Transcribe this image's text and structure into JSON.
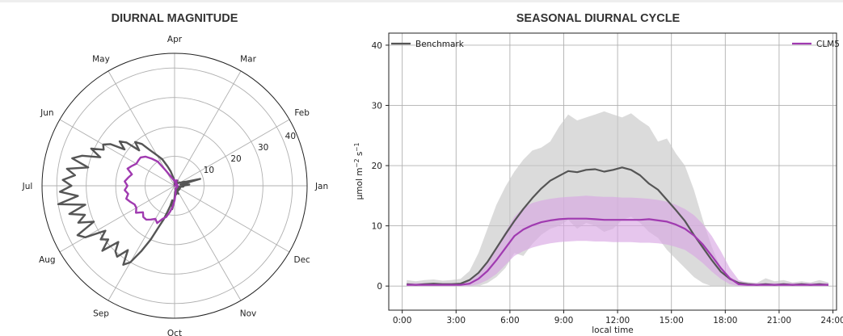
{
  "colors": {
    "benchmark": "#555555",
    "clm5": "#a03ab0",
    "benchmark_band": "#c8c8c8",
    "clm5_band": "#d9a8e3",
    "grid": "#b0b0b0"
  },
  "chart_data": [
    {
      "type": "line",
      "subtype": "polar",
      "title": "DIURNAL MAGNITUDE",
      "angular_labels": [
        "Jan",
        "Feb",
        "Mar",
        "Apr",
        "May",
        "Jun",
        "Jul",
        "Aug",
        "Sep",
        "Oct",
        "Nov",
        "Dec"
      ],
      "radial_ticks": [
        10,
        20,
        30,
        40
      ],
      "rlim": [
        0,
        45
      ],
      "direction": "counterclockwise",
      "zero_location": "east",
      "series": [
        {
          "name": "Benchmark",
          "color_key": "benchmark",
          "points": [
            [
              0,
              3
            ],
            [
              5,
              5
            ],
            [
              10,
              2
            ],
            [
              15,
              9
            ],
            [
              20,
              4
            ],
            [
              25,
              3
            ],
            [
              30,
              2
            ],
            [
              35,
              2
            ],
            [
              40,
              1
            ],
            [
              45,
              0
            ],
            [
              50,
              0
            ],
            [
              55,
              1
            ],
            [
              60,
              2
            ],
            [
              65,
              1
            ],
            [
              70,
              0
            ],
            [
              75,
              1
            ],
            [
              80,
              0
            ],
            [
              85,
              1
            ],
            [
              90,
              1
            ],
            [
              95,
              2
            ],
            [
              100,
              3
            ],
            [
              105,
              5
            ],
            [
              110,
              7
            ],
            [
              115,
              10
            ],
            [
              120,
              12
            ],
            [
              125,
              15
            ],
            [
              128,
              18
            ],
            [
              132,
              20
            ],
            [
              135,
              17
            ],
            [
              138,
              22
            ],
            [
              141,
              24
            ],
            [
              144,
              21
            ],
            [
              147,
              26
            ],
            [
              150,
              28
            ],
            [
              153,
              27
            ],
            [
              156,
              31
            ],
            [
              159,
              27
            ],
            [
              162,
              33
            ],
            [
              165,
              36
            ],
            [
              168,
              30
            ],
            [
              171,
              37
            ],
            [
              174,
              34
            ],
            [
              177,
              38
            ],
            [
              180,
              35
            ],
            [
              183,
              39
            ],
            [
              186,
              33
            ],
            [
              189,
              40
            ],
            [
              192,
              31
            ],
            [
              195,
              37
            ],
            [
              198,
              32
            ],
            [
              201,
              35
            ],
            [
              204,
              30
            ],
            [
              207,
              37
            ],
            [
              210,
              35
            ],
            [
              213,
              28
            ],
            [
              216,
              31
            ],
            [
              219,
              29
            ],
            [
              222,
              33
            ],
            [
              225,
              27
            ],
            [
              228,
              30
            ],
            [
              231,
              31
            ],
            [
              234,
              27
            ],
            [
              237,
              32
            ],
            [
              240,
              30
            ],
            [
              243,
              25
            ],
            [
              246,
              20
            ],
            [
              249,
              15
            ],
            [
              252,
              12
            ],
            [
              255,
              9
            ],
            [
              258,
              7
            ],
            [
              261,
              5
            ],
            [
              264,
              8
            ],
            [
              267,
              6
            ],
            [
              270,
              4
            ],
            [
              275,
              2
            ],
            [
              280,
              3
            ],
            [
              285,
              1
            ],
            [
              290,
              2
            ],
            [
              295,
              3
            ],
            [
              300,
              1
            ],
            [
              305,
              2
            ],
            [
              310,
              1
            ],
            [
              315,
              2
            ],
            [
              320,
              1
            ],
            [
              325,
              2
            ],
            [
              330,
              1
            ],
            [
              335,
              2
            ],
            [
              340,
              2
            ],
            [
              345,
              1
            ],
            [
              350,
              2
            ],
            [
              355,
              3
            ],
            [
              360,
              3
            ]
          ]
        },
        {
          "name": "CLM5",
          "color_key": "clm5",
          "points": [
            [
              0,
              1
            ],
            [
              10,
              1
            ],
            [
              20,
              0
            ],
            [
              30,
              0
            ],
            [
              40,
              1
            ],
            [
              50,
              1
            ],
            [
              60,
              1
            ],
            [
              70,
              2
            ],
            [
              80,
              1
            ],
            [
              90,
              2
            ],
            [
              100,
              2
            ],
            [
              110,
              3
            ],
            [
              120,
              6
            ],
            [
              125,
              10
            ],
            [
              130,
              12
            ],
            [
              135,
              14
            ],
            [
              140,
              15
            ],
            [
              145,
              15
            ],
            [
              150,
              15
            ],
            [
              155,
              16
            ],
            [
              160,
              17
            ],
            [
              165,
              15
            ],
            [
              170,
              16
            ],
            [
              175,
              17
            ],
            [
              180,
              16
            ],
            [
              185,
              17
            ],
            [
              190,
              16
            ],
            [
              195,
              17
            ],
            [
              200,
              16
            ],
            [
              205,
              15
            ],
            [
              210,
              15
            ],
            [
              215,
              16
            ],
            [
              220,
              14
            ],
            [
              225,
              15
            ],
            [
              230,
              15
            ],
            [
              235,
              14
            ],
            [
              240,
              13
            ],
            [
              245,
              14
            ],
            [
              250,
              12
            ],
            [
              255,
              11
            ],
            [
              260,
              9
            ],
            [
              265,
              7
            ],
            [
              270,
              5
            ],
            [
              275,
              3
            ],
            [
              280,
              2
            ],
            [
              290,
              1
            ],
            [
              300,
              1
            ],
            [
              310,
              1
            ],
            [
              320,
              1
            ],
            [
              330,
              1
            ],
            [
              340,
              1
            ],
            [
              350,
              1
            ],
            [
              360,
              1
            ]
          ]
        }
      ]
    },
    {
      "type": "line",
      "title": "SEASONAL DIURNAL CYCLE",
      "xlabel": "local time",
      "ylabel_main": "μmol m",
      "ylabel_exp1": "−2",
      "ylabel_mid": " s",
      "ylabel_exp2": "−1",
      "xlim": [
        -0.75,
        24.2
      ],
      "ylim": [
        -4,
        42
      ],
      "xticks": [
        {
          "value": 0,
          "label": "0:00"
        },
        {
          "value": 3,
          "label": "3:00"
        },
        {
          "value": 6,
          "label": "6:00"
        },
        {
          "value": 9,
          "label": "9:00"
        },
        {
          "value": 12,
          "label": "12:00"
        },
        {
          "value": 15,
          "label": "15:00"
        },
        {
          "value": 18,
          "label": "18:00"
        },
        {
          "value": 21,
          "label": "21:00"
        },
        {
          "value": 24,
          "label": "24:00"
        }
      ],
      "yticks": [
        0,
        10,
        20,
        30,
        40
      ],
      "grid": true,
      "legend": [
        {
          "name": "Benchmark",
          "placement": "top-left"
        },
        {
          "name": "CLM5",
          "placement": "top-right"
        }
      ],
      "x": [
        0.25,
        0.75,
        1.25,
        1.75,
        2.25,
        2.75,
        3.25,
        3.75,
        4.25,
        4.75,
        5.25,
        5.75,
        6.25,
        6.75,
        7.25,
        7.75,
        8.25,
        8.75,
        9.25,
        9.75,
        10.25,
        10.75,
        11.25,
        11.75,
        12.25,
        12.75,
        13.25,
        13.75,
        14.25,
        14.75,
        15.25,
        15.75,
        16.25,
        16.75,
        17.25,
        17.75,
        18.25,
        18.75,
        19.25,
        19.75,
        20.25,
        20.75,
        21.25,
        21.75,
        22.25,
        22.75,
        23.25,
        23.75
      ],
      "series": [
        {
          "name": "Benchmark",
          "color_key": "benchmark",
          "values": [
            0.3,
            0.2,
            0.3,
            0.4,
            0.3,
            0.3,
            0.4,
            1.0,
            2.2,
            4.0,
            6.3,
            8.6,
            10.8,
            12.8,
            14.6,
            16.2,
            17.5,
            18.3,
            19.1,
            18.9,
            19.3,
            19.4,
            19.0,
            19.3,
            19.7,
            19.3,
            18.4,
            17.0,
            16.0,
            14.3,
            12.6,
            10.8,
            8.5,
            6.4,
            4.3,
            2.4,
            1.2,
            0.5,
            0.3,
            0.2,
            0.3,
            0.2,
            0.3,
            0.2,
            0.3,
            0.2,
            0.3,
            0.2
          ],
          "band_upper": [
            1.0,
            0.8,
            1.0,
            1.1,
            0.9,
            1.0,
            1.2,
            2.5,
            5.5,
            9.5,
            13.5,
            16.5,
            19.0,
            21.0,
            22.5,
            23.0,
            24.0,
            26.5,
            28.5,
            27.5,
            28.0,
            28.5,
            29.0,
            28.5,
            28.0,
            28.7,
            27.5,
            26.5,
            24.0,
            24.5,
            22.0,
            20.0,
            16.0,
            11.0,
            6.5,
            3.0,
            1.5,
            0.8,
            0.7,
            0.5,
            1.3,
            0.8,
            1.0,
            0.6,
            0.8,
            0.6,
            1.0,
            0.6
          ],
          "band_lower": [
            0.0,
            0.0,
            0.0,
            0.0,
            0.0,
            0.0,
            0.0,
            0.0,
            0.0,
            0.5,
            1.5,
            3.0,
            5.5,
            5.0,
            7.0,
            8.5,
            9.5,
            10.0,
            11.0,
            9.5,
            10.5,
            10.0,
            9.0,
            9.5,
            11.0,
            11.5,
            10.5,
            9.0,
            8.0,
            6.0,
            4.5,
            3.0,
            1.5,
            0.5,
            0.0,
            0.0,
            0.0,
            0.0,
            0.0,
            0.0,
            0.0,
            0.0,
            0.0,
            0.0,
            0.0,
            0.0,
            0.0,
            0.0
          ]
        },
        {
          "name": "CLM5",
          "color_key": "clm5",
          "values": [
            0.2,
            0.2,
            0.2,
            0.2,
            0.2,
            0.2,
            0.2,
            0.4,
            1.2,
            2.5,
            4.3,
            6.3,
            8.3,
            9.4,
            10.1,
            10.6,
            10.9,
            11.1,
            11.2,
            11.2,
            11.2,
            11.1,
            11.0,
            11.0,
            11.0,
            11.0,
            11.0,
            11.1,
            10.9,
            10.7,
            10.2,
            9.5,
            8.4,
            6.9,
            5.0,
            3.0,
            1.3,
            0.3,
            0.2,
            0.2,
            0.2,
            0.2,
            0.2,
            0.2,
            0.2,
            0.2,
            0.2,
            0.2
          ],
          "band_upper": [
            0.5,
            0.5,
            0.5,
            0.5,
            0.5,
            0.5,
            0.5,
            0.8,
            2.0,
            4.0,
            6.5,
            9.0,
            11.5,
            13.0,
            13.8,
            14.2,
            14.5,
            14.7,
            14.8,
            14.9,
            15.0,
            14.9,
            14.8,
            14.8,
            14.7,
            14.7,
            14.6,
            14.5,
            14.3,
            14.0,
            13.5,
            12.8,
            11.8,
            10.3,
            8.3,
            5.8,
            3.0,
            1.0,
            0.5,
            0.5,
            0.5,
            0.5,
            0.5,
            0.5,
            0.5,
            0.5,
            0.5,
            0.5
          ],
          "band_lower": [
            0.0,
            0.0,
            0.0,
            0.0,
            0.0,
            0.0,
            0.0,
            0.0,
            0.3,
            1.0,
            2.0,
            3.5,
            5.0,
            5.8,
            6.4,
            6.8,
            7.1,
            7.3,
            7.4,
            7.5,
            7.5,
            7.4,
            7.4,
            7.3,
            7.3,
            7.3,
            7.2,
            7.2,
            7.1,
            6.9,
            6.5,
            6.0,
            5.0,
            3.8,
            2.4,
            1.2,
            0.3,
            0.0,
            0.0,
            0.0,
            0.0,
            0.0,
            0.0,
            0.0,
            0.0,
            0.0,
            0.0,
            0.0
          ]
        }
      ]
    }
  ]
}
